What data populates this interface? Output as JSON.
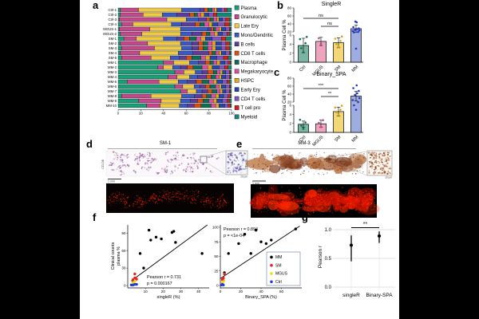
{
  "figure": {
    "background": "#000000",
    "page_background": "#ffffff"
  },
  "panel_a": {
    "label": "a",
    "x_ticks": [
      0,
      20,
      40,
      60,
      80,
      100
    ],
    "cell_types": [
      {
        "name": "Plasma",
        "color": "#1a9e77"
      },
      {
        "name": "Granulocytic",
        "color": "#c2498c"
      },
      {
        "name": "Late Ery",
        "color": "#eec944"
      },
      {
        "name": "Mono/Dendritic",
        "color": "#3a5abf"
      },
      {
        "name": "B cells",
        "color": "#5e3c99"
      },
      {
        "name": "CD8 T cells",
        "color": "#d94f12"
      },
      {
        "name": "Macrophage",
        "color": "#0e6e55"
      },
      {
        "name": "Megakaryocyte",
        "color": "#d94fa2"
      },
      {
        "name": "HSPC",
        "color": "#e3a71e"
      },
      {
        "name": "Early Ery",
        "color": "#2746a8"
      },
      {
        "name": "CD4 T cells",
        "color": "#7f55c0"
      },
      {
        "name": "T cell pro",
        "color": "#cc2418"
      },
      {
        "name": "Myeloid",
        "color": "#11887a"
      }
    ],
    "samples": [
      {
        "name": "Ctrl-1",
        "values": [
          2,
          16,
          38,
          16,
          4,
          3,
          4,
          2,
          2,
          4,
          3,
          2,
          4
        ]
      },
      {
        "name": "Ctrl-2",
        "values": [
          2,
          20,
          17,
          13,
          11,
          4,
          3,
          3,
          3,
          4,
          4,
          3,
          13
        ]
      },
      {
        "name": "Ctrl-3",
        "values": [
          1,
          42,
          17,
          11,
          7,
          3,
          3,
          3,
          2,
          3,
          3,
          3,
          2
        ]
      },
      {
        "name": "Ctrl-4",
        "values": [
          3,
          10,
          34,
          9,
          12,
          4,
          4,
          4,
          3,
          5,
          6,
          4,
          2
        ]
      },
      {
        "name": "MGUS-1",
        "values": [
          1,
          27,
          27,
          24,
          3,
          2,
          2,
          3,
          2,
          4,
          3,
          1,
          1
        ]
      },
      {
        "name": "MGUS-2",
        "values": [
          2,
          19,
          34,
          10,
          9,
          4,
          3,
          4,
          3,
          4,
          4,
          2,
          2
        ]
      },
      {
        "name": "SM-1",
        "values": [
          5,
          11,
          24,
          12,
          6,
          5,
          6,
          4,
          4,
          6,
          8,
          4,
          5
        ]
      },
      {
        "name": "SM-2",
        "values": [
          2,
          24,
          29,
          10,
          6,
          4,
          4,
          4,
          3,
          5,
          4,
          3,
          2
        ]
      },
      {
        "name": "SM-3",
        "values": [
          3,
          29,
          24,
          9,
          6,
          4,
          4,
          4,
          3,
          5,
          4,
          3,
          2
        ]
      },
      {
        "name": "SM-4",
        "values": [
          2,
          17,
          34,
          13,
          14,
          3,
          3,
          3,
          2,
          4,
          3,
          1,
          1
        ]
      },
      {
        "name": "SM-5",
        "values": [
          3,
          26,
          17,
          8,
          6,
          5,
          8,
          4,
          4,
          6,
          6,
          4,
          3
        ]
      },
      {
        "name": "MM-1",
        "values": [
          40,
          9,
          14,
          8,
          6,
          4,
          3,
          3,
          3,
          4,
          3,
          2,
          1
        ]
      },
      {
        "name": "MM-2",
        "values": [
          35,
          5,
          8,
          7,
          6,
          5,
          8,
          5,
          4,
          6,
          5,
          3,
          3
        ]
      },
      {
        "name": "MM-3",
        "values": [
          50,
          8,
          10,
          6,
          5,
          5,
          3,
          3,
          2,
          3,
          3,
          1,
          1
        ]
      },
      {
        "name": "MM-4",
        "values": [
          44,
          8,
          11,
          7,
          8,
          4,
          4,
          3,
          2,
          4,
          3,
          1,
          1
        ]
      },
      {
        "name": "MM-5",
        "values": [
          8,
          28,
          17,
          8,
          8,
          5,
          6,
          4,
          3,
          5,
          4,
          2,
          2
        ]
      },
      {
        "name": "MM-6",
        "values": [
          50,
          7,
          10,
          5,
          5,
          4,
          5,
          3,
          2,
          4,
          3,
          1,
          1
        ]
      },
      {
        "name": "MM-7",
        "values": [
          55,
          6,
          8,
          5,
          5,
          4,
          4,
          3,
          2,
          3,
          3,
          1,
          1
        ]
      },
      {
        "name": "MM-8",
        "values": [
          3,
          26,
          27,
          11,
          7,
          4,
          4,
          4,
          3,
          4,
          4,
          2,
          1
        ]
      },
      {
        "name": "MM-9",
        "values": [
          18,
          20,
          17,
          9,
          6,
          5,
          5,
          4,
          3,
          5,
          4,
          2,
          2
        ]
      },
      {
        "name": "MM-10",
        "values": [
          25,
          12,
          17,
          7,
          6,
          6,
          9,
          4,
          3,
          5,
          3,
          2,
          1
        ]
      }
    ]
  },
  "panel_b": {
    "label": "b",
    "title": "SingleR",
    "y_label": "Plasma Cell %",
    "y_ticks_upper": [
      80,
      60,
      40,
      20
    ],
    "y_ticks_lower": [
      6,
      4,
      2,
      0
    ],
    "groups": [
      {
        "name": "Ctrl",
        "fill": "#79b5a2",
        "dot_color": "#0e6e55",
        "value": 3.7,
        "err": 1.6,
        "dots": [
          2.2,
          3.1,
          4.2,
          5.1,
          5.6
        ]
      },
      {
        "name": "MGUS",
        "fill": "#eda4bf",
        "dot_color": "#c2498c",
        "value": 4.6,
        "err": 0.9,
        "dots": [
          4.1,
          5.3
        ]
      },
      {
        "name": "SM",
        "fill": "#f2d878",
        "dot_color": "#d9a616",
        "value": 4.3,
        "err": 1.1,
        "dots": [
          3.4,
          4.0,
          4.7,
          5.2,
          5.7
        ]
      },
      {
        "name": "MM",
        "fill": "#9facdf",
        "dot_color": "#2238c8",
        "value": 28,
        "err": 9,
        "dots": [
          3,
          18,
          20,
          22,
          24,
          25,
          27,
          29,
          32,
          44,
          46
        ]
      }
    ],
    "comparisons": [
      {
        "label": "ns",
        "from": 0,
        "to": 2,
        "high": true
      },
      {
        "label": "ns",
        "from": 1,
        "to": 2,
        "high": false
      }
    ]
  },
  "panel_c": {
    "label": "c",
    "title": "Binary_SPA",
    "y_label": "Plasma Cell %",
    "y_ticks_upper": [
      80,
      60,
      40,
      20
    ],
    "y_ticks_lower": [
      6,
      4,
      2,
      0
    ],
    "groups": [
      {
        "name": "Ctrl",
        "fill": "#79b5a2",
        "dot_color": "#0e6e55",
        "value": 1.8,
        "err": 0.7,
        "dots": [
          0.8,
          1.5,
          2.2,
          2.8
        ]
      },
      {
        "name": "MGUS",
        "fill": "#eda4bf",
        "dot_color": "#c2498c",
        "value": 1.9,
        "err": 0.8,
        "dots": [
          1.2,
          2.1,
          2.7
        ]
      },
      {
        "name": "SM",
        "fill": "#f2d878",
        "dot_color": "#d9a616",
        "value": 4.6,
        "err": 1.0,
        "dots": [
          3.8,
          4.4,
          5.0,
          5.5,
          5.9
        ]
      },
      {
        "name": "MM",
        "fill": "#9facdf",
        "dot_color": "#2238c8",
        "value": 35,
        "err": 12,
        "dots": [
          5,
          6,
          20,
          25,
          30,
          38,
          42,
          48,
          55,
          62
        ]
      }
    ],
    "comparisons": [
      {
        "label": "***",
        "from": 0,
        "to": 2,
        "high": true
      },
      {
        "label": "**",
        "from": 1,
        "to": 2,
        "high": false
      }
    ]
  },
  "panel_d": {
    "label": "d",
    "title": "SM-1",
    "stain_label": "CD138",
    "scale_bar": "1 mm",
    "inset_scale": "10 µm",
    "stain_colors": [
      "#b86a92",
      "#8a5a9e",
      "#caa0c0",
      "#9a7ab5"
    ],
    "inset_colors": [
      "#5a6ab8",
      "#8a7ab8",
      "#b8c0dc",
      "#7a5a9a"
    ],
    "fluor_colors": [
      "#ff2200",
      "#cc1500",
      "#991000"
    ]
  },
  "panel_e": {
    "label": "e",
    "title": "MM-3",
    "stain_label": "CD138",
    "scale_bar": "1 mm",
    "inset_scale": "10 µm",
    "stain_colors": [
      "#7a3a1e",
      "#9a5530",
      "#b4703f",
      "#c8916a"
    ],
    "speck_color": "#5a2810",
    "fluor_colors": [
      "#e01400",
      "#b50e00",
      "#ff2a00"
    ]
  },
  "panel_f": {
    "label": "f",
    "y_label_line1": "Clinical counts",
    "y_label_line2": "plasma %",
    "plots": [
      {
        "x_label": "singleR (%)",
        "x_ticks": [
          10,
          20,
          30,
          40
        ],
        "y_ticks": [
          0,
          30,
          60,
          90
        ],
        "xlim": [
          0,
          46
        ],
        "ylim": [
          -4,
          104
        ],
        "annotation_r": "Pearson r = 0.731",
        "annotation_p": "p = 0.000167",
        "ann_pos": "bottom",
        "reg_line": [
          [
            2,
            8
          ],
          [
            45,
            104
          ]
        ],
        "series": [
          {
            "name": "MM",
            "color": "#000000",
            "points": [
              [
                7,
                55
              ],
              [
                9,
                30
              ],
              [
                12,
                95
              ],
              [
                13,
                78
              ],
              [
                16,
                83
              ],
              [
                19,
                80
              ],
              [
                25,
                91
              ],
              [
                26,
                93
              ],
              [
                27,
                74
              ],
              [
                42,
                55
              ]
            ]
          },
          {
            "name": "SM",
            "color": "#e8211d",
            "points": [
              [
                3,
                10
              ],
              [
                4,
                13
              ],
              [
                4,
                20
              ],
              [
                5,
                11
              ],
              [
                3,
                8
              ]
            ]
          },
          {
            "name": "MGUS",
            "color": "#ffd400",
            "points": [
              [
                3,
                5
              ],
              [
                4,
                7
              ]
            ]
          },
          {
            "name": "Ctrl",
            "color": "#1f3fd8",
            "points": [
              [
                2,
                1
              ],
              [
                3,
                1
              ],
              [
                4,
                2
              ],
              [
                5,
                2
              ]
            ]
          }
        ]
      },
      {
        "x_label": "Binary_SPA (%)",
        "x_ticks": [
          0,
          20,
          40,
          60
        ],
        "y_ticks": [
          0,
          25,
          50,
          75,
          100
        ],
        "xlim": [
          0,
          80
        ],
        "ylim": [
          -4,
          104
        ],
        "annotation_r": "Pearson r = 0.894",
        "annotation_p": "p = <1e-04",
        "ann_pos": "top",
        "reg_line": [
          [
            0,
            12
          ],
          [
            78,
            102
          ]
        ],
        "series": [
          {
            "name": "MM",
            "color": "#000000",
            "points": [
              [
                4,
                22
              ],
              [
                8,
                55
              ],
              [
                18,
                72
              ],
              [
                24,
                88
              ],
              [
                30,
                55
              ],
              [
                35,
                95
              ],
              [
                40,
                75
              ],
              [
                45,
                72
              ],
              [
                50,
                78
              ],
              [
                74,
                97
              ]
            ]
          },
          {
            "name": "SM",
            "color": "#e8211d",
            "points": [
              [
                2,
                10
              ],
              [
                3,
                13
              ],
              [
                4,
                20
              ],
              [
                3,
                8
              ]
            ]
          },
          {
            "name": "MGUS",
            "color": "#ffd400",
            "points": [
              [
                2,
                5
              ],
              [
                3,
                7
              ]
            ]
          },
          {
            "name": "Ctrl",
            "color": "#1f3fd8",
            "points": [
              [
                1,
                1
              ],
              [
                2,
                2
              ],
              [
                3,
                1
              ]
            ]
          }
        ],
        "legend": [
          {
            "name": "MM",
            "color": "#000000"
          },
          {
            "name": "SM",
            "color": "#e8211d"
          },
          {
            "name": "MGUS",
            "color": "#ffd400"
          },
          {
            "name": "Ctrl",
            "color": "#1f3fd8"
          }
        ]
      }
    ]
  },
  "panel_g": {
    "label": "g",
    "y_label": "Pearson r",
    "y_tick_labels": [
      "1.0",
      "0.5",
      "0.0"
    ],
    "y_tick_values": [
      1.0,
      0.5,
      0.0
    ],
    "categories": [
      {
        "name": "singleR",
        "value": 0.73,
        "ci": [
          0.45,
          0.9
        ]
      },
      {
        "name": "Binary-SPA",
        "value": 0.89,
        "ci": [
          0.77,
          0.97
        ]
      }
    ],
    "significance": "**"
  }
}
